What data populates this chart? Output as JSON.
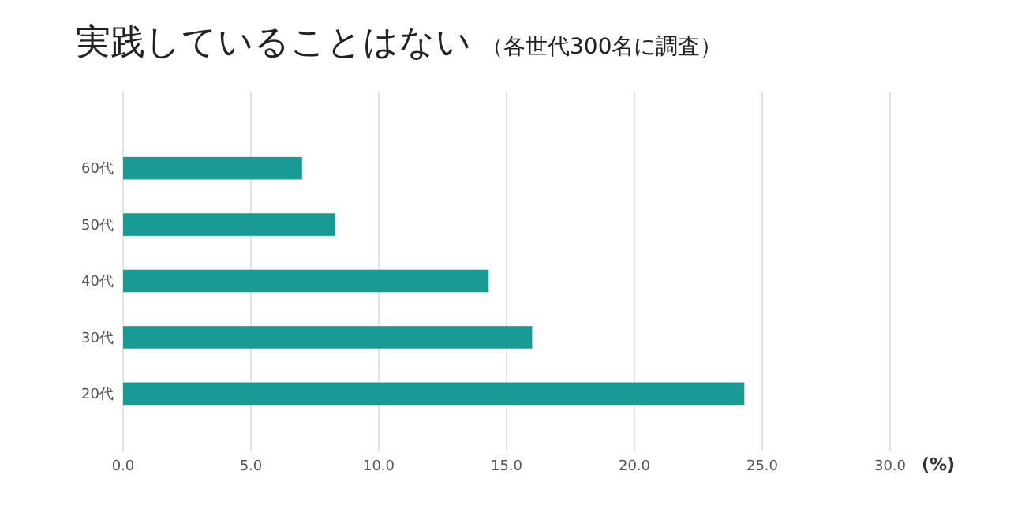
{
  "chart_data": {
    "type": "bar",
    "orientation": "horizontal",
    "title": "実践していることはない",
    "subtitle": "（各世代300名に調査）",
    "xlabel": "(%)",
    "categories": [
      "60代",
      "50代",
      "40代",
      "30代",
      "20代"
    ],
    "values": [
      7.0,
      8.3,
      14.3,
      16.0,
      24.3
    ],
    "color": "#1a9a94",
    "xlim": [
      0,
      30
    ],
    "xticks": [
      {
        "value": 0,
        "label": "0.0"
      },
      {
        "value": 5,
        "label": "5.0"
      },
      {
        "value": 10,
        "label": "10.0"
      },
      {
        "value": 15,
        "label": "15.0"
      },
      {
        "value": 20,
        "label": "20.0"
      },
      {
        "value": 25,
        "label": "25.0"
      },
      {
        "value": 30,
        "label": "30.0"
      }
    ],
    "grid": "x"
  }
}
